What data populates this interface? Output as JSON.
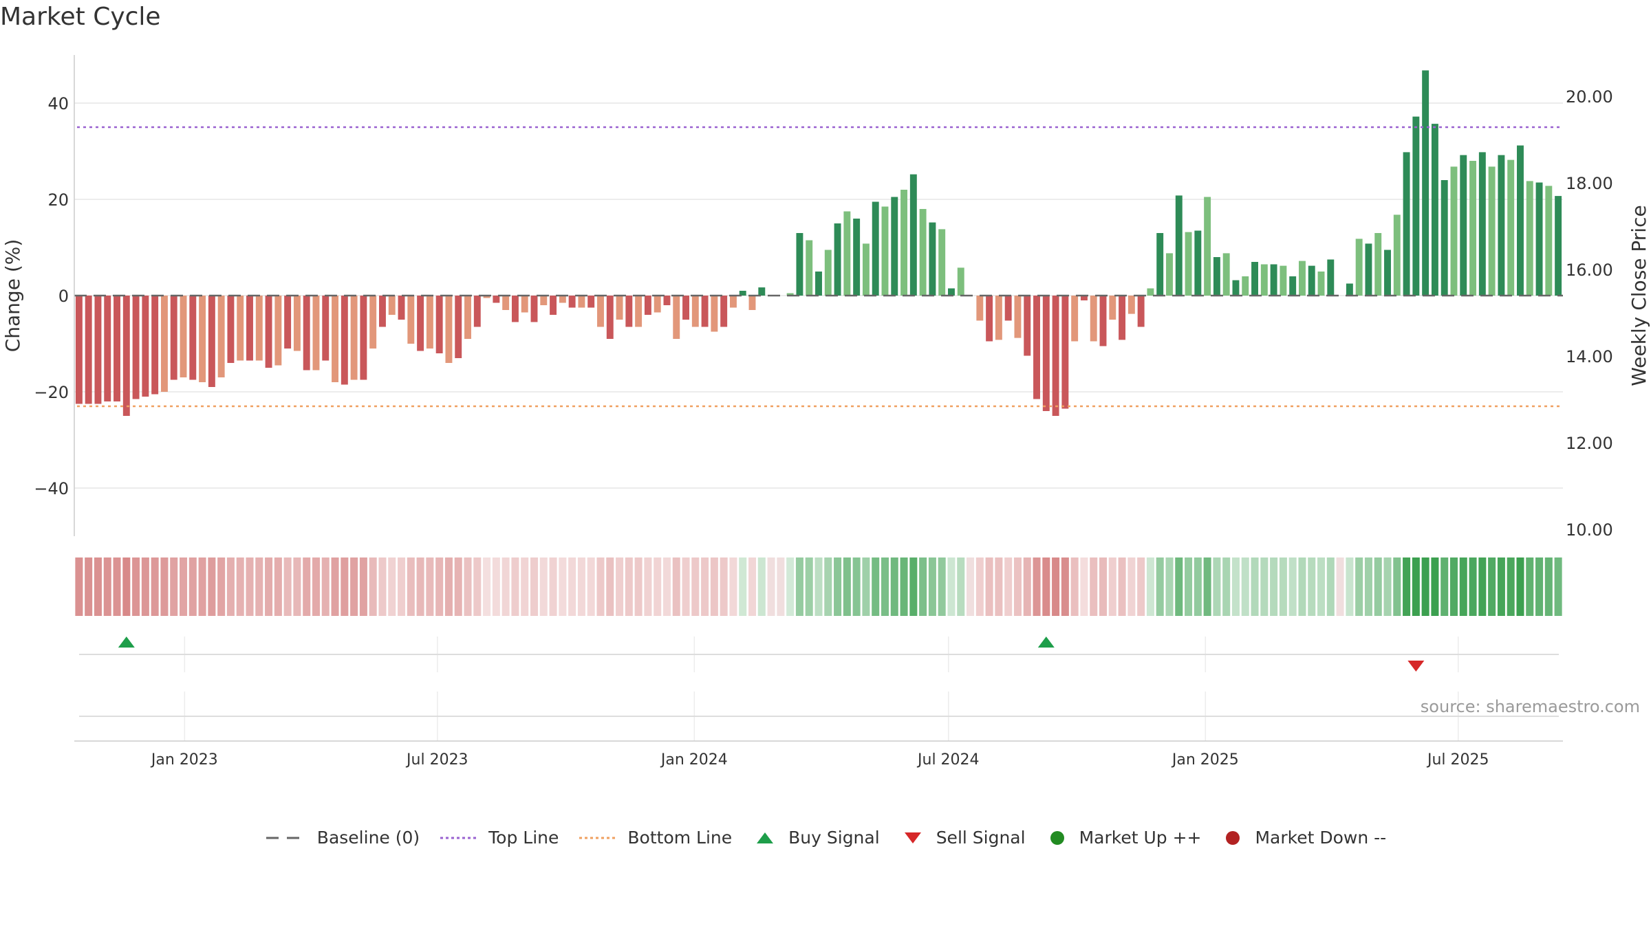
{
  "title": "Market Cycle",
  "source": "source: sharemaestro.com",
  "colors": {
    "down_strong": "#c9575a",
    "down_light": "#e2977a",
    "up_strong": "#2e8b57",
    "up_light": "#7dbf7d",
    "top_line": "#9a62d0",
    "bottom_line": "#f0a060",
    "buy": "#1e9e4a",
    "sell": "#d62728",
    "market_up": "#228b22",
    "market_down": "#b22222",
    "baseline": "#666666"
  },
  "legend": [
    {
      "label": "Baseline (0)",
      "icon": "dash-line-icon"
    },
    {
      "label": "Top Line",
      "icon": "dotted-line-purple-icon"
    },
    {
      "label": "Bottom Line",
      "icon": "dotted-line-orange-icon"
    },
    {
      "label": "Buy Signal",
      "icon": "triangle-up-icon"
    },
    {
      "label": "Sell Signal",
      "icon": "triangle-down-icon"
    },
    {
      "label": "Market Up ++",
      "icon": "circle-green-icon"
    },
    {
      "label": "Market Down --",
      "icon": "circle-red-icon"
    }
  ],
  "chart_data": {
    "type": "bar",
    "ylabel": "Change (%)",
    "y2label": "Weekly Close Price",
    "ylim": [
      -50,
      50
    ],
    "y2lim": [
      10,
      20.8
    ],
    "yticks": [
      40,
      20,
      0,
      -20,
      -40
    ],
    "ytick_labels": [
      "40",
      "20",
      "0",
      "−20",
      "−40"
    ],
    "y2ticks": [
      "20.00",
      "18.00",
      "16.00",
      "14.00",
      "12.00",
      "10.00"
    ],
    "x_tick_labels": [
      "Jan 2023",
      "Jul 2023",
      "Jan 2024",
      "Jul 2024",
      "Jan 2025",
      "Jul 2025"
    ],
    "x_tick_dates": [
      "2023-01-01",
      "2023-07-01",
      "2024-01-01",
      "2024-07-01",
      "2025-01-01",
      "2025-07-01"
    ],
    "x_range": [
      "2022-10-14",
      "2025-09-14"
    ],
    "top_line": 35,
    "bottom_line": -23,
    "baseline": 0,
    "series": [
      {
        "values": [
          -22.5,
          -22.5,
          -22.5,
          -22,
          -22,
          -25,
          -21.5,
          -21,
          -20.5,
          -20,
          -17.5,
          -17,
          -17.5,
          -18,
          -19,
          -17,
          -14,
          -13.5,
          -13.5,
          -13.5,
          -15,
          -14.5,
          -11,
          -11.5,
          -15.5,
          -15.5,
          -13.5,
          -18,
          -18.5,
          -17.5,
          -17.5,
          -11,
          -6.5,
          -4,
          -5,
          -10,
          -11.5,
          -11,
          -12,
          -14,
          -13,
          -9,
          -6.5,
          -0.5,
          -1.5,
          -3,
          -5.5,
          -3.5,
          -5.5,
          -2,
          -4,
          -1.5,
          -2.5,
          -2.5,
          -2.5,
          -6.5,
          -9,
          -5,
          -6.5,
          -6.5,
          -4,
          -3.5,
          -2,
          -9,
          -5,
          -6.5,
          -6.5,
          -7.5,
          -6.5,
          -2.5,
          1,
          -3,
          1.7,
          0,
          0,
          0.5,
          13,
          11.5,
          5,
          9.5,
          15,
          17.5,
          16,
          10.8,
          19.5,
          18.5,
          20.5,
          22,
          25.2,
          18,
          15.2,
          13.8,
          1.5,
          5.8,
          0,
          -5.2,
          -9.5,
          -9.2,
          -5.2,
          -8.8,
          -12.5,
          -21.5,
          -24,
          -25,
          -23.5,
          -9.5,
          -1,
          -9.5,
          -10.5,
          -5,
          -9.2,
          -3.8,
          -6.5,
          1.5,
          13,
          8.8,
          20.8,
          13.2,
          13.5,
          20.5,
          8,
          8.8,
          3.2,
          4,
          7,
          6.5,
          6.5,
          6.2,
          4,
          7.2,
          6.2,
          5,
          7.5,
          0,
          2.5,
          11.8,
          10.8,
          13,
          9.5,
          16.8,
          29.8,
          37.2,
          46.8,
          35.7,
          24,
          26.8,
          29.2,
          28,
          29.8,
          26.8,
          29.2,
          28.2,
          31.2,
          23.8,
          23.5,
          22.8,
          20.7
        ]
      }
    ],
    "strip_values": [
      -22.5,
      -22.5,
      -22.5,
      -22,
      -22,
      -25,
      -21.5,
      -21,
      -20.5,
      -20,
      -17.5,
      -17,
      -17.5,
      -18,
      -19,
      -17,
      -14,
      -13.5,
      -13.5,
      -13.5,
      -15,
      -14.5,
      -11,
      -11.5,
      -15.5,
      -15.5,
      -13.5,
      -18,
      -18.5,
      -17.5,
      -17.5,
      -11,
      -6.5,
      -4,
      -5,
      -10,
      -11.5,
      -11,
      -12,
      -14,
      -13,
      -9,
      -6.5,
      -0.5,
      -1.5,
      -3,
      -5.5,
      -3.5,
      -5.5,
      -2,
      -4,
      -1.5,
      -2.5,
      -2.5,
      -2.5,
      -6.5,
      -9,
      -5,
      -6.5,
      -6.5,
      -4,
      -3.5,
      -2,
      -9,
      -5,
      -6.5,
      -6.5,
      -7.5,
      -6.5,
      -2.5,
      1,
      -3,
      1.7,
      0,
      0,
      0.5,
      13,
      11.5,
      5,
      9.5,
      15,
      17.5,
      16,
      10.8,
      19.5,
      18.5,
      20.5,
      22,
      25.2,
      18,
      15.2,
      13.8,
      1.5,
      5.8,
      0,
      -5.2,
      -9.5,
      -9.2,
      -5.2,
      -8.8,
      -12.5,
      -21.5,
      -24,
      -25,
      -23.5,
      -9.5,
      -1,
      -9.5,
      -10.5,
      -5,
      -9.2,
      -3.8,
      -6.5,
      1.5,
      13,
      8.8,
      20.8,
      13.2,
      13.5,
      20.5,
      8,
      8.8,
      3.2,
      4,
      7,
      6.5,
      6.5,
      6.2,
      4,
      7.2,
      6.2,
      5,
      7.5,
      0,
      2.5,
      11.8,
      10.8,
      13,
      9.5,
      16.8,
      29.8,
      37.2,
      46.8,
      35.7,
      24,
      26.8,
      29.2,
      28,
      29.8,
      26.8,
      29.2,
      28.2,
      31.2,
      23.8,
      23.5,
      22.8,
      20.7
    ],
    "buy_signals": [
      5,
      102
    ],
    "sell_signals": [
      141
    ]
  }
}
